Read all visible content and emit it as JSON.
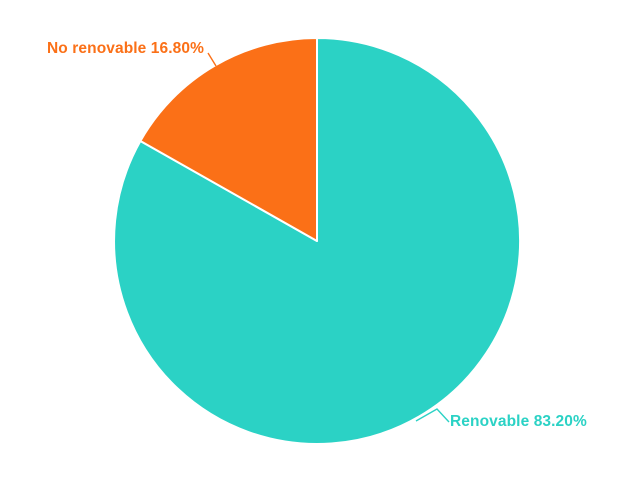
{
  "page": {
    "background": "#ffffff"
  },
  "chart_data": {
    "type": "pie",
    "title": "",
    "legend": "outside-labels-with-leader-lines",
    "start_angle_deg": 0,
    "direction": "clockwise",
    "background": "#ffffff",
    "slice_border_color": "#ffffff",
    "categories": [
      "Renovable",
      "No renovable"
    ],
    "values": [
      83.2,
      16.8
    ],
    "slices": [
      {
        "label": "Renovable",
        "value": 83.2,
        "display_label": "Renovable 83.20%",
        "color": "#2bd2c5"
      },
      {
        "label": "No renovable",
        "value": 16.8,
        "display_label": "No renovable 16.80%",
        "color": "#fb7017"
      }
    ]
  }
}
